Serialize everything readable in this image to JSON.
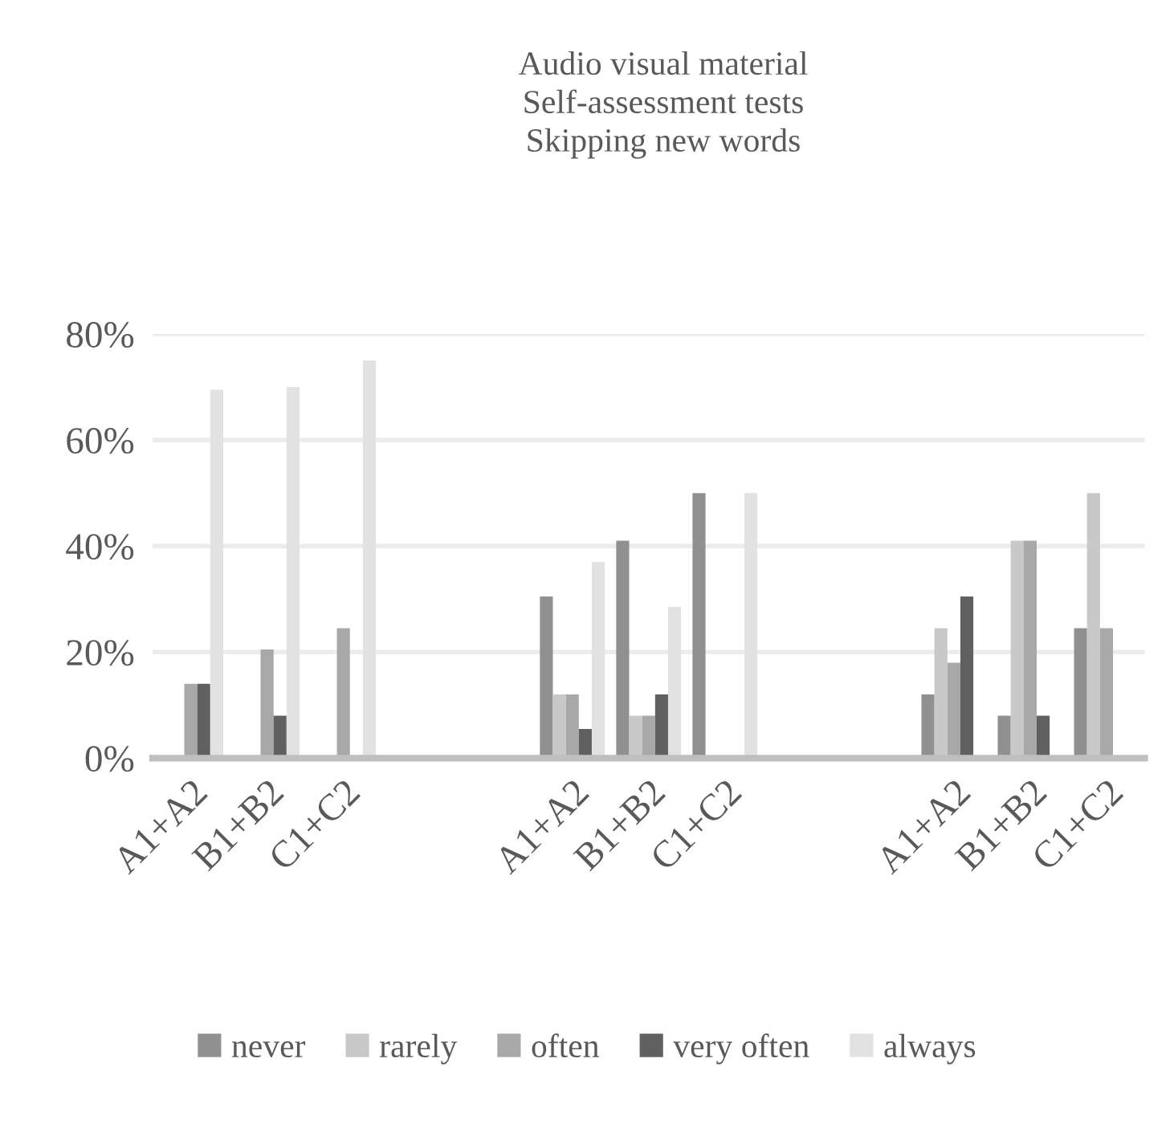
{
  "chart_data": {
    "type": "bar",
    "title": "Audio visual material\nSelf-assessment tests\nSkipping new words",
    "categories": [
      "A1+A2",
      "B1+B2",
      "C1+C2",
      null,
      null,
      "A1+A2",
      "B1+B2",
      "C1+C2",
      null,
      null,
      "A1+A2",
      "B1+B2",
      "C1+C2"
    ],
    "series": [
      {
        "name": "never",
        "color": "#909090",
        "values": [
          0,
          0,
          0,
          null,
          null,
          30.5,
          41,
          50,
          null,
          null,
          12,
          8,
          24.5
        ]
      },
      {
        "name": "rarely",
        "color": "#c8c8c8",
        "values": [
          0,
          0,
          0,
          null,
          null,
          12,
          8,
          0,
          null,
          null,
          24.5,
          41,
          50
        ]
      },
      {
        "name": "often",
        "color": "#a8a8a8",
        "values": [
          14,
          20.5,
          24.5,
          null,
          null,
          12,
          8,
          0,
          null,
          null,
          18,
          41,
          24.5
        ]
      },
      {
        "name": "very often",
        "color": "#606060",
        "values": [
          14,
          8,
          0,
          null,
          null,
          5.5,
          12,
          0,
          null,
          null,
          30.5,
          8,
          0
        ]
      },
      {
        "name": "always",
        "color": "#e2e2e2",
        "values": [
          69.5,
          70,
          75,
          null,
          null,
          37,
          28.5,
          50,
          null,
          null,
          0,
          0,
          0
        ]
      }
    ],
    "ylim": [
      0,
      80
    ],
    "yticks": [
      {
        "value": 0,
        "label": "0%"
      },
      {
        "value": 20,
        "label": "20%"
      },
      {
        "value": 40,
        "label": "40%"
      },
      {
        "value": 60,
        "label": "60%"
      },
      {
        "value": 80,
        "label": "80%"
      }
    ],
    "grid": "y",
    "legend": "bottom"
  }
}
